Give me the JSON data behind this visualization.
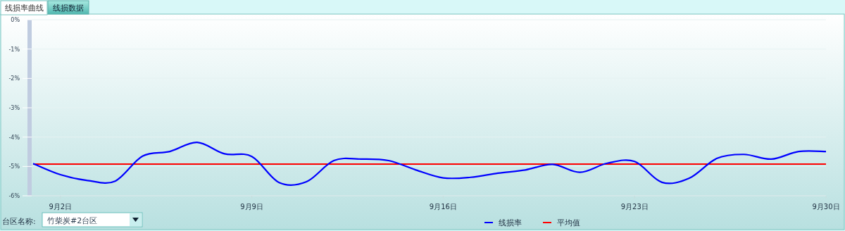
{
  "chart_data": {
    "type": "line",
    "title": "线损率曲线",
    "annotations": [
      "线损数据",
      "台区名称:",
      "竹柴炭#2台区"
    ],
    "x": [
      "--09-01",
      "--09-02",
      "--09-03",
      "--09-04",
      "--09-05",
      "--09-06",
      "--09-07",
      "--09-08",
      "--09-09",
      "--09-10",
      "--09-11",
      "--09-12",
      "--09-13",
      "--09-14",
      "--09-15",
      "--09-16",
      "--09-17",
      "--09-18",
      "--09-19",
      "--09-20",
      "--09-21",
      "--09-22",
      "--09-23",
      "--09-24",
      "--09-25",
      "--09-26",
      "--09-27",
      "--09-28",
      "--09-29",
      "--09-30"
    ],
    "series": [
      {
        "name": "线损率",
        "color": "#0000ff",
        "values": [
          -4.9,
          -5.28,
          -5.48,
          -5.5,
          -4.65,
          -4.49,
          -4.18,
          -4.57,
          -4.66,
          -5.55,
          -5.52,
          -4.8,
          -4.75,
          -4.8,
          -5.12,
          -5.39,
          -5.37,
          -5.23,
          -5.12,
          -4.93,
          -5.2,
          -4.89,
          -4.83,
          -5.54,
          -5.4,
          -4.73,
          -4.59,
          -4.75,
          -4.49,
          -4.49
        ]
      }
    ],
    "ref_lines": [
      {
        "axis": "y",
        "value": -4.92,
        "label": "平均值",
        "color": "#ff0000"
      }
    ],
    "xlim": [
      "--09-01",
      "--09-30"
    ],
    "xticks": [
      {
        "value": "--09-02",
        "label": "9月2日"
      },
      {
        "value": "--09-09",
        "label": "9月9日"
      },
      {
        "value": "--09-16",
        "label": "9月16日"
      },
      {
        "value": "--09-23",
        "label": "9月23日"
      },
      {
        "value": "--09-30",
        "label": "9月30日"
      }
    ],
    "ylim": [
      -6,
      0
    ],
    "yticks": [
      {
        "value": 0,
        "label": "0%"
      },
      {
        "value": -1,
        "label": "-1%"
      },
      {
        "value": -2,
        "label": "-2%"
      },
      {
        "value": -3,
        "label": "-3%"
      },
      {
        "value": -4,
        "label": "-4%"
      },
      {
        "value": -5,
        "label": "-5%"
      },
      {
        "value": -6,
        "label": "-6%"
      }
    ],
    "grid": "y",
    "legend": "bottom"
  }
}
